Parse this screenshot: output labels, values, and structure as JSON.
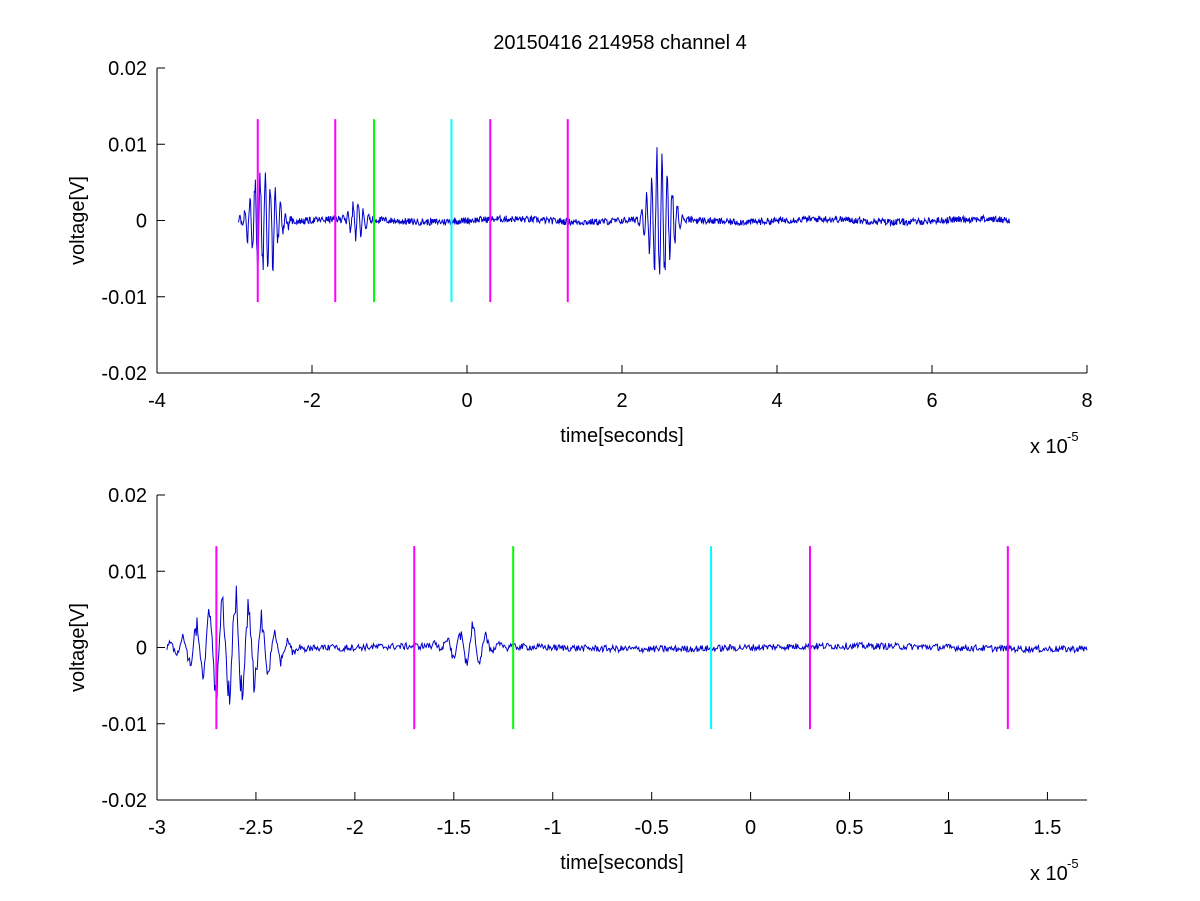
{
  "figure": {
    "title": "20150416 214958 channel 4",
    "background": "#ffffff"
  },
  "colors": {
    "signal": "#0000cc",
    "axis": "#000000",
    "magenta": "#ff00ff",
    "green": "#00ff00",
    "cyan": "#00ffff"
  },
  "chart_data": [
    {
      "type": "line",
      "title": "20150416 214958 channel 4",
      "xlabel": "time[seconds]",
      "ylabel": "voltage[V]",
      "x_exponent_label": "x 10",
      "x_exponent": "-5",
      "xlim": [
        -4,
        8
      ],
      "ylim": [
        -0.02,
        0.02
      ],
      "xticks": [
        -4,
        -2,
        0,
        2,
        4,
        6,
        8
      ],
      "xtick_labels": [
        "-4",
        "-2",
        "0",
        "2",
        "4",
        "6",
        "8"
      ],
      "yticks": [
        -0.02,
        -0.01,
        0,
        0.01,
        0.02
      ],
      "ytick_labels": [
        "-0.02",
        "-0.01",
        "0",
        "0.01",
        "0.02"
      ],
      "grid": false,
      "signal_range": [
        -2.95,
        7.0
      ],
      "markers": [
        {
          "x": -2.7,
          "color": "#ff00ff",
          "y0": -0.0107,
          "y1": 0.0133
        },
        {
          "x": -1.7,
          "color": "#ff00ff",
          "y0": -0.0107,
          "y1": 0.0133
        },
        {
          "x": -1.2,
          "color": "#00ff00",
          "y0": -0.0107,
          "y1": 0.0133
        },
        {
          "x": -0.2,
          "color": "#00ffff",
          "y0": -0.0107,
          "y1": 0.0133
        },
        {
          "x": 0.3,
          "color": "#ff00ff",
          "y0": -0.0107,
          "y1": 0.0133
        },
        {
          "x": 1.3,
          "color": "#ff00ff",
          "y0": -0.0107,
          "y1": 0.0133
        }
      ],
      "bursts": [
        {
          "center": -2.62,
          "width": 0.2,
          "amp": 0.0065
        },
        {
          "center": -1.42,
          "width": 0.12,
          "amp": 0.0022
        },
        {
          "center": 2.5,
          "width": 0.18,
          "amp": 0.0075
        }
      ]
    },
    {
      "type": "line",
      "title": "",
      "xlabel": "time[seconds]",
      "ylabel": "voltage[V]",
      "x_exponent_label": "x 10",
      "x_exponent": "-5",
      "xlim": [
        -3.0,
        1.7
      ],
      "ylim": [
        -0.02,
        0.02
      ],
      "xticks": [
        -3,
        -2.5,
        -2,
        -1.5,
        -1,
        -0.5,
        0,
        0.5,
        1,
        1.5
      ],
      "xtick_labels": [
        "-3",
        "-2.5",
        "-2",
        "-1.5",
        "-1",
        "-0.5",
        "0",
        "0.5",
        "1",
        "1.5"
      ],
      "yticks": [
        -0.02,
        -0.01,
        0,
        0.01,
        0.02
      ],
      "ytick_labels": [
        "-0.02",
        "-0.01",
        "0",
        "0.01",
        "0.02"
      ],
      "grid": false,
      "signal_range": [
        -2.95,
        1.7
      ],
      "markers": [
        {
          "x": -2.7,
          "color": "#ff00ff",
          "y0": -0.0107,
          "y1": 0.0133
        },
        {
          "x": -1.7,
          "color": "#ff00ff",
          "y0": -0.0107,
          "y1": 0.0133
        },
        {
          "x": -1.2,
          "color": "#00ff00",
          "y0": -0.0107,
          "y1": 0.0133
        },
        {
          "x": -0.2,
          "color": "#00ffff",
          "y0": -0.0107,
          "y1": 0.0133
        },
        {
          "x": 0.3,
          "color": "#ff00ff",
          "y0": -0.0107,
          "y1": 0.0133
        },
        {
          "x": 1.3,
          "color": "#ff00ff",
          "y0": -0.0107,
          "y1": 0.0133
        }
      ],
      "bursts": [
        {
          "center": -2.62,
          "width": 0.2,
          "amp": 0.0065
        },
        {
          "center": -1.42,
          "width": 0.12,
          "amp": 0.0022
        }
      ]
    }
  ]
}
